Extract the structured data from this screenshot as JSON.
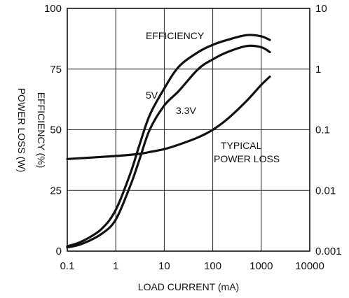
{
  "chart_data": {
    "type": "line",
    "xlabel": "LOAD CURRENT (mA)",
    "ylabel": "EFFICIENCY (%)",
    "y2label": "POWER LOSS (W)",
    "x_scale": "log",
    "xlim": [
      0.1,
      10000
    ],
    "ylim": [
      0,
      100
    ],
    "y2_scale": "log",
    "y2lim": [
      0.001,
      10
    ],
    "grid": true,
    "x_ticks": [
      "0.1",
      "1",
      "10",
      "100",
      "1000",
      "10000"
    ],
    "y_ticks": [
      "0",
      "25",
      "50",
      "75",
      "100"
    ],
    "y2_ticks": [
      "0.001",
      "0.01",
      "0.1",
      "1",
      "10"
    ],
    "series": [
      {
        "name": "5V",
        "axis": "left",
        "x": [
          0.1,
          0.2,
          0.5,
          1,
          2,
          3,
          5,
          10,
          20,
          50,
          100,
          200,
          500,
          1000,
          1500
        ],
        "y": [
          2,
          4,
          9,
          17,
          32,
          43,
          56,
          67,
          76,
          82,
          85,
          87,
          89,
          88.5,
          87
        ]
      },
      {
        "name": "3.3V",
        "axis": "left",
        "x": [
          0.1,
          0.2,
          0.5,
          1,
          2,
          3,
          5,
          10,
          20,
          50,
          100,
          200,
          500,
          1000,
          1500
        ],
        "y": [
          1.5,
          3,
          7,
          13,
          27,
          37,
          50,
          60,
          66,
          75,
          79,
          82,
          84.5,
          84,
          82
        ]
      },
      {
        "name": "TYPICAL POWER LOSS",
        "axis": "right",
        "x": [
          0.1,
          1,
          3,
          5,
          10,
          20,
          50,
          100,
          200,
          500,
          1000,
          1500
        ],
        "y": [
          0.033,
          0.037,
          0.04,
          0.043,
          0.048,
          0.057,
          0.075,
          0.1,
          0.15,
          0.3,
          0.55,
          0.75
        ]
      }
    ],
    "annotations": [
      "EFFICIENCY",
      "5V",
      "3.3V",
      "TYPICAL",
      "POWER LOSS"
    ]
  }
}
